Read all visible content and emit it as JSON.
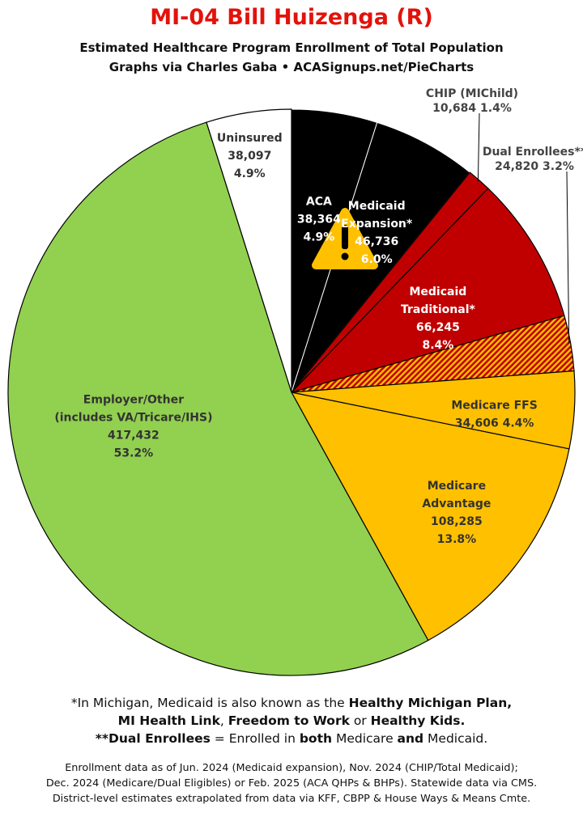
{
  "header": {
    "title": "MI-04 Bill Huizenga (R)",
    "subtitle1": "Estimated Healthcare Program Enrollment of Total Population",
    "subtitle2": "Graphs via Charles Gaba  •  ACASignups.net/PieCharts"
  },
  "chart_data": {
    "type": "pie",
    "title": "MI-04 Bill Huizenga (R)",
    "slices": [
      {
        "label": "ACA",
        "value": 38364,
        "value_text": "38,364",
        "percent": "4.9%",
        "color": "#000000",
        "text_color": "#ffffff"
      },
      {
        "label": "Medicaid Expansion*",
        "value": 46736,
        "value_text": "46,736",
        "percent": "6.0%",
        "color": "#000000",
        "text_color": "#ffffff"
      },
      {
        "label": "CHIP (MIChild)",
        "value": 10684,
        "value_text": "10,684",
        "percent": "1.4%",
        "color": "#c00000",
        "text_color": "#444444"
      },
      {
        "label": "Medicaid Traditional*",
        "value": 66245,
        "value_text": "66,245",
        "percent": "8.4%",
        "color": "#c00000",
        "text_color": "#ffffff"
      },
      {
        "label": "Dual Enrollees**",
        "value": 24820,
        "value_text": "24,820",
        "percent": "3.2%",
        "color": "hatch",
        "text_color": "#222222"
      },
      {
        "label": "Medicare FFS",
        "value": 34606,
        "value_text": "34,606",
        "percent": "4.4%",
        "color": "#ffc000",
        "text_color": "#333333"
      },
      {
        "label": "Medicare Advantage",
        "value": 108285,
        "value_text": "108,285",
        "percent": "13.8%",
        "color": "#ffc000",
        "text_color": "#333333"
      },
      {
        "label": "Employer/Other (includes VA/Tricare/IHS)",
        "value": 417432,
        "value_text": "417,432",
        "percent": "53.2%",
        "color": "#92d050",
        "text_color": "#333333"
      },
      {
        "label": "Uninsured",
        "value": 38097,
        "value_text": "38,097",
        "percent": "4.9%",
        "color": "#ffffff",
        "text_color": "#333333"
      }
    ],
    "start_angle_deg": 0,
    "direction": "clockwise",
    "warning_icon": "warning-triangle-icon"
  },
  "footnotes": {
    "line1_pre": "*In Michigan, Medicaid is also known as the ",
    "line1_bold": "Healthy Michigan Plan,",
    "line2_b1": "MI Health Link",
    "line2_t1": ", ",
    "line2_b2": "Freedom to Work",
    "line2_t2": " or ",
    "line2_b3": "Healthy Kids.",
    "line3_b1": "**Dual Enrollees",
    "line3_t1": " = Enrolled in ",
    "line3_b2": "both",
    "line3_t2": " Medicare ",
    "line3_b3": "and",
    "line3_t3": " Medicaid.",
    "source1": "Enrollment data as of Jun. 2024 (Medicaid expansion), Nov. 2024 (CHIP/Total Medicaid);",
    "source2": "Dec. 2024 (Medicare/Dual Eligibles) or Feb. 2025 (ACA QHPs & BHPs). Statewide data via CMS.",
    "source3": "District-level estimates extrapolated from data via KFF, CBPP & House Ways & Means Cmte."
  }
}
